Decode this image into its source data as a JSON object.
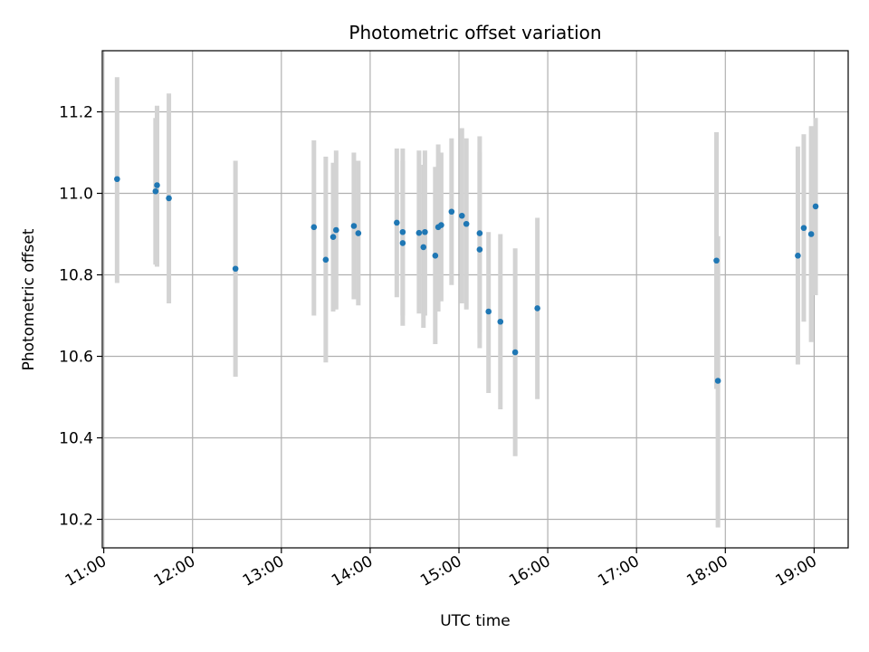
{
  "chart_data": {
    "type": "scatter",
    "title": "Photometric offset variation",
    "xlabel": "UTC time",
    "ylabel": "Photometric offset",
    "x_axis_type": "time",
    "x_ticks": [
      "11:00",
      "12:00",
      "13:00",
      "14:00",
      "15:00",
      "16:00",
      "17:00",
      "18:00",
      "19:00"
    ],
    "y_ticks": [
      "10.2",
      "10.4",
      "10.6",
      "10.8",
      "11.0",
      "11.2"
    ],
    "xlim": [
      "10:59",
      "19:23"
    ],
    "ylim": [
      10.13,
      11.35
    ],
    "grid": true,
    "legend": "none",
    "marker_color": "#1f77b4",
    "errorbar_color": "#d3d3d3",
    "series": [
      {
        "points": [
          {
            "x": "11:09",
            "y": 11.035,
            "lo": 10.78,
            "hi": 11.285
          },
          {
            "x": "11:35",
            "y": 11.005,
            "lo": 10.825,
            "hi": 11.185
          },
          {
            "x": "11:36",
            "y": 11.02,
            "lo": 10.82,
            "hi": 11.215
          },
          {
            "x": "11:44",
            "y": 10.988,
            "lo": 10.73,
            "hi": 11.245
          },
          {
            "x": "12:29",
            "y": 10.815,
            "lo": 10.55,
            "hi": 11.08
          },
          {
            "x": "13:22",
            "y": 10.917,
            "lo": 10.7,
            "hi": 11.13
          },
          {
            "x": "13:30",
            "y": 10.837,
            "lo": 10.585,
            "hi": 11.09
          },
          {
            "x": "13:35",
            "y": 10.893,
            "lo": 10.71,
            "hi": 11.075
          },
          {
            "x": "13:37",
            "y": 10.91,
            "lo": 10.715,
            "hi": 11.105
          },
          {
            "x": "13:49",
            "y": 10.92,
            "lo": 10.74,
            "hi": 11.1
          },
          {
            "x": "13:52",
            "y": 10.902,
            "lo": 10.725,
            "hi": 11.08
          },
          {
            "x": "14:18",
            "y": 10.928,
            "lo": 10.745,
            "hi": 11.11
          },
          {
            "x": "14:22",
            "y": 10.878,
            "lo": 10.675,
            "hi": 11.08
          },
          {
            "x": "14:22",
            "y": 10.905,
            "lo": 10.7,
            "hi": 11.11
          },
          {
            "x": "14:33",
            "y": 10.903,
            "lo": 10.705,
            "hi": 11.105
          },
          {
            "x": "14:36",
            "y": 10.868,
            "lo": 10.67,
            "hi": 11.07
          },
          {
            "x": "14:37",
            "y": 10.905,
            "lo": 10.7,
            "hi": 11.105
          },
          {
            "x": "14:44",
            "y": 10.847,
            "lo": 10.63,
            "hi": 11.065
          },
          {
            "x": "14:46",
            "y": 10.917,
            "lo": 10.71,
            "hi": 11.12
          },
          {
            "x": "14:48",
            "y": 10.922,
            "lo": 10.735,
            "hi": 11.1
          },
          {
            "x": "14:55",
            "y": 10.955,
            "lo": 10.775,
            "hi": 11.135
          },
          {
            "x": "15:02",
            "y": 10.945,
            "lo": 10.73,
            "hi": 11.16
          },
          {
            "x": "15:05",
            "y": 10.925,
            "lo": 10.715,
            "hi": 11.135
          },
          {
            "x": "15:14",
            "y": 10.902,
            "lo": 10.66,
            "hi": 11.14
          },
          {
            "x": "15:14",
            "y": 10.862,
            "lo": 10.62,
            "hi": 11.1
          },
          {
            "x": "15:20",
            "y": 10.71,
            "lo": 10.51,
            "hi": 10.905
          },
          {
            "x": "15:28",
            "y": 10.685,
            "lo": 10.47,
            "hi": 10.9
          },
          {
            "x": "15:38",
            "y": 10.61,
            "lo": 10.355,
            "hi": 10.865
          },
          {
            "x": "15:53",
            "y": 10.718,
            "lo": 10.495,
            "hi": 10.94
          },
          {
            "x": "17:54",
            "y": 10.835,
            "lo": 10.52,
            "hi": 11.15
          },
          {
            "x": "17:55",
            "y": 10.54,
            "lo": 10.18,
            "hi": 10.895
          },
          {
            "x": "18:49",
            "y": 10.847,
            "lo": 10.58,
            "hi": 11.115
          },
          {
            "x": "18:53",
            "y": 10.915,
            "lo": 10.685,
            "hi": 11.145
          },
          {
            "x": "18:58",
            "y": 10.9,
            "lo": 10.635,
            "hi": 11.165
          },
          {
            "x": "19:01",
            "y": 10.968,
            "lo": 10.75,
            "hi": 11.185
          }
        ]
      }
    ]
  }
}
